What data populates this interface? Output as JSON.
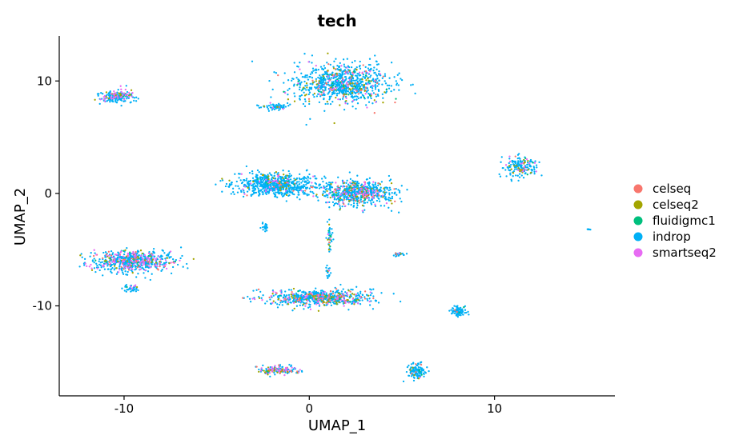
{
  "chart_data": {
    "type": "scatter",
    "title": "tech",
    "xlabel": "UMAP_1",
    "ylabel": "UMAP_2",
    "xlim": [
      -13.5,
      16.5
    ],
    "ylim": [
      -18,
      14
    ],
    "x_ticks": [
      -10,
      0,
      10
    ],
    "y_ticks": [
      -10,
      0,
      10
    ],
    "x_tick_labels": [
      "-10",
      "0",
      "10"
    ],
    "y_tick_labels": [
      "-10",
      "0",
      "10"
    ],
    "grid": false,
    "legend_placement": "right",
    "series": [
      {
        "name": "celseq",
        "color": "#F8766D"
      },
      {
        "name": "celseq2",
        "color": "#A3A500"
      },
      {
        "name": "fluidigmc1",
        "color": "#00BF7D"
      },
      {
        "name": "indrop",
        "color": "#00B0F6"
      },
      {
        "name": "smartseq2",
        "color": "#E76BF3"
      }
    ],
    "clusters": [
      {
        "center": [
          1.8,
          9.8
        ],
        "spread": [
          2.3,
          1.6
        ],
        "n": 900,
        "mix": [
          0.04,
          0.09,
          0.02,
          0.8,
          0.05
        ]
      },
      {
        "center": [
          -1.8,
          7.7
        ],
        "spread": [
          0.8,
          0.3
        ],
        "n": 60,
        "mix": [
          0.03,
          0.05,
          0.02,
          0.85,
          0.05
        ]
      },
      {
        "center": [
          -10.4,
          8.6
        ],
        "spread": [
          0.8,
          0.45
        ],
        "n": 200,
        "mix": [
          0.03,
          0.05,
          0.02,
          0.72,
          0.18
        ]
      },
      {
        "center": [
          -1.8,
          0.8
        ],
        "spread": [
          2.0,
          0.9
        ],
        "n": 700,
        "mix": [
          0.02,
          0.04,
          0.01,
          0.9,
          0.03
        ]
      },
      {
        "center": [
          2.6,
          0.0
        ],
        "spread": [
          1.7,
          1.0
        ],
        "n": 650,
        "mix": [
          0.06,
          0.09,
          0.02,
          0.73,
          0.1
        ]
      },
      {
        "center": [
          11.4,
          2.4
        ],
        "spread": [
          0.8,
          0.7
        ],
        "n": 180,
        "mix": [
          0.04,
          0.06,
          0.02,
          0.78,
          0.1
        ]
      },
      {
        "center": [
          -9.6,
          -6.0
        ],
        "spread": [
          2.0,
          0.85
        ],
        "n": 650,
        "mix": [
          0.06,
          0.06,
          0.02,
          0.68,
          0.18
        ]
      },
      {
        "center": [
          -9.6,
          -8.4
        ],
        "spread": [
          0.35,
          0.3
        ],
        "n": 40,
        "mix": [
          0.03,
          0.05,
          0.02,
          0.8,
          0.1
        ]
      },
      {
        "center": [
          0.7,
          -9.3
        ],
        "spread": [
          2.5,
          0.65
        ],
        "n": 650,
        "mix": [
          0.07,
          0.09,
          0.02,
          0.72,
          0.1
        ]
      },
      {
        "center": [
          -1.7,
          -15.7
        ],
        "spread": [
          1.1,
          0.3
        ],
        "n": 160,
        "mix": [
          0.08,
          0.1,
          0.02,
          0.62,
          0.18
        ]
      },
      {
        "center": [
          5.8,
          -15.8
        ],
        "spread": [
          0.45,
          0.6
        ],
        "n": 120,
        "mix": [
          0.02,
          0.03,
          0.01,
          0.92,
          0.02
        ]
      },
      {
        "center": [
          8.1,
          -10.5
        ],
        "spread": [
          0.4,
          0.4
        ],
        "n": 80,
        "mix": [
          0.02,
          0.03,
          0.01,
          0.92,
          0.02
        ]
      },
      {
        "center": [
          4.9,
          -5.4
        ],
        "spread": [
          0.35,
          0.15
        ],
        "n": 25,
        "mix": [
          0.1,
          0.03,
          0.01,
          0.84,
          0.02
        ]
      },
      {
        "center": [
          -2.4,
          -3.0
        ],
        "spread": [
          0.15,
          0.35
        ],
        "n": 20,
        "mix": [
          0.02,
          0.03,
          0.01,
          0.92,
          0.02
        ]
      },
      {
        "center": [
          1.1,
          -3.8
        ],
        "spread": [
          0.12,
          1.0
        ],
        "n": 40,
        "mix": [
          0.03,
          0.05,
          0.02,
          0.85,
          0.05
        ]
      },
      {
        "center": [
          1.0,
          -7.0
        ],
        "spread": [
          0.15,
          0.5
        ],
        "n": 20,
        "mix": [
          0.05,
          0.1,
          0.02,
          0.78,
          0.05
        ]
      },
      {
        "center": [
          15.1,
          -3.2
        ],
        "spread": [
          0.08,
          0.06
        ],
        "n": 6,
        "mix": [
          0.0,
          0.0,
          0.0,
          1.0,
          0.0
        ]
      }
    ]
  }
}
